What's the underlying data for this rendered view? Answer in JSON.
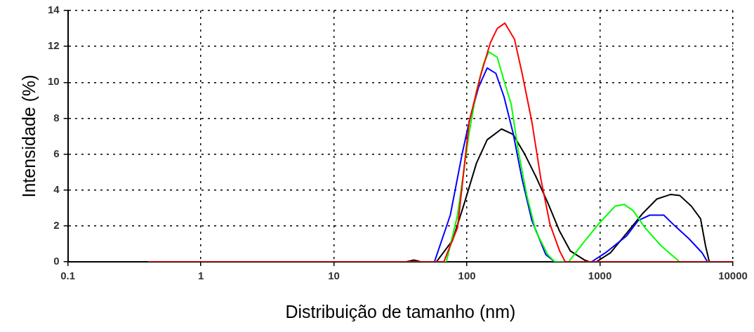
{
  "chart_data": {
    "type": "line",
    "xlabel": "Distribuição de tamanho (nm)",
    "ylabel": "Intensidade (%)",
    "log": "x",
    "xlim": [
      0.1,
      10000
    ],
    "xticks": [
      0.1,
      1,
      10,
      100,
      1000,
      10000
    ],
    "ylim": [
      0,
      14
    ],
    "yticks": [
      0,
      2,
      4,
      6,
      8,
      10,
      12,
      14
    ],
    "grid": true,
    "legend": false,
    "marker": "none",
    "line_style": "solid",
    "series": [
      {
        "color": "#ff0000",
        "x": [
          0.4,
          67,
          85,
          104,
          127,
          150,
          169,
          193,
          228,
          260,
          308,
          360,
          421,
          498,
          548,
          10000
        ],
        "values": [
          0,
          0,
          1.9,
          7.8,
          10.4,
          12.2,
          13.0,
          13.3,
          12.4,
          10.5,
          7.8,
          4.6,
          2.1,
          0.6,
          0,
          0
        ]
      },
      {
        "color": "#00ff00",
        "x": [
          0.4,
          70,
          85,
          104,
          118,
          133,
          146,
          169,
          190,
          215,
          243,
          282,
          330,
          405,
          458,
          582,
          740,
          975,
          1300,
          1520,
          1778,
          2180,
          2875,
          3975,
          6500
        ],
        "values": [
          0,
          0,
          2.6,
          7.2,
          9.5,
          11.0,
          11.7,
          11.4,
          10.1,
          8.8,
          6.2,
          3.7,
          1.7,
          0.4,
          0,
          0,
          1.0,
          2.1,
          3.1,
          3.2,
          2.85,
          1.9,
          0.9,
          0,
          0
        ]
      },
      {
        "color": "#0000ff",
        "x": [
          0.4,
          57,
          75,
          92,
          104,
          122,
          142,
          165,
          190,
          222,
          260,
          308,
          392,
          458,
          865,
          1100,
          1590,
          1940,
          2370,
          3020,
          3660,
          4650,
          5870,
          6430
        ],
        "values": [
          0,
          0,
          2.6,
          6.0,
          7.8,
          9.7,
          10.8,
          10.5,
          9.2,
          7.2,
          4.6,
          2.3,
          0.4,
          0,
          0,
          0.5,
          1.45,
          2.3,
          2.6,
          2.6,
          2.0,
          1.3,
          0.5,
          0
        ]
      },
      {
        "color": "#000000",
        "x": [
          0.4,
          35,
          40,
          45,
          59,
          78,
          96,
          118,
          142,
          182,
          222,
          272,
          330,
          405,
          498,
          600,
          765,
          830,
          940,
          1200,
          1590,
          2100,
          2680,
          3390,
          3975,
          4870,
          5710,
          6220,
          6640,
          10000
        ],
        "values": [
          0,
          0,
          0.1,
          0,
          0,
          1.2,
          3.3,
          5.5,
          6.8,
          7.4,
          7.1,
          6.0,
          4.75,
          3.3,
          1.7,
          0.6,
          0.1,
          0,
          0,
          0.5,
          1.6,
          2.7,
          3.5,
          3.75,
          3.7,
          3.1,
          2.4,
          0.9,
          0,
          0
        ]
      }
    ]
  }
}
